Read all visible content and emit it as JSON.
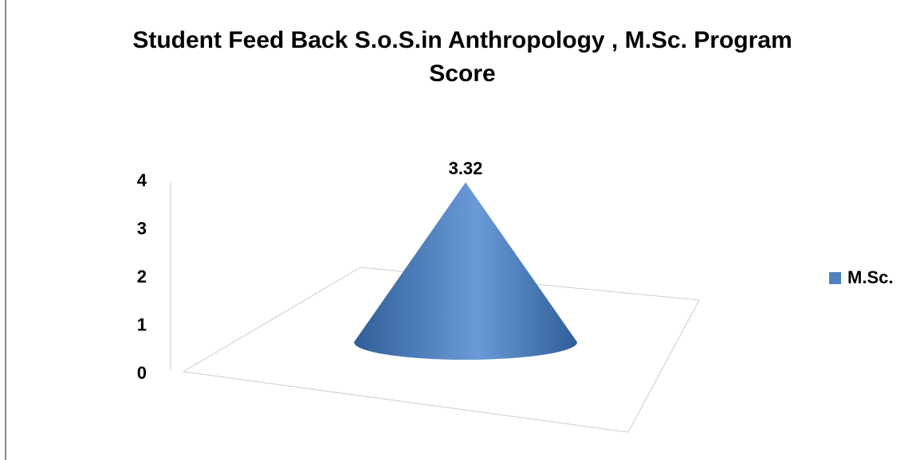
{
  "chart_data": {
    "type": "cone",
    "title": "Student Feed Back S.o.S.in Anthropology , M.Sc. Program Score",
    "categories": [
      null
    ],
    "series": [
      {
        "name": "M.Sc.",
        "color": "#4f81bd",
        "values": [
          3.32
        ]
      }
    ],
    "ylim": [
      0,
      4
    ],
    "yticks": [
      0,
      1,
      2,
      3,
      4
    ],
    "legend": "right"
  }
}
